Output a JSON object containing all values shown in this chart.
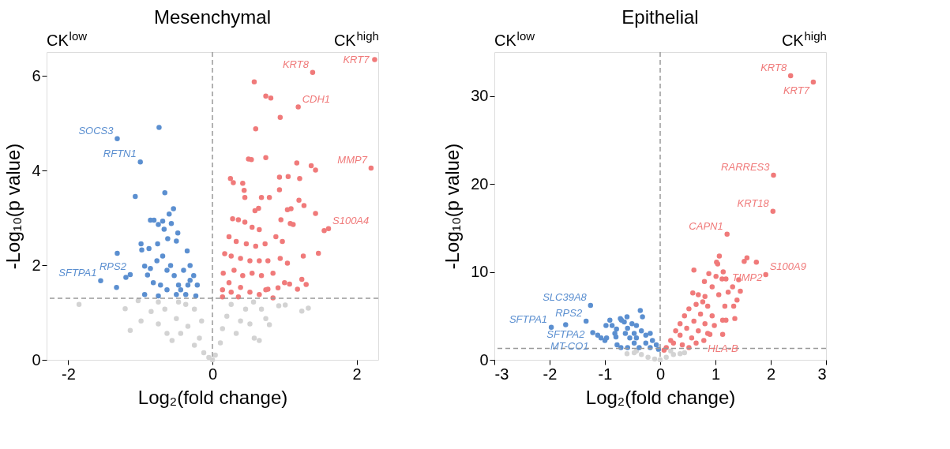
{
  "chart_data": [
    {
      "type": "scatter",
      "title": "Mesenchymal",
      "xlabel": "Log₂(fold change)",
      "ylabel": "-Log₁₀(p value)",
      "xlim": [
        -2.3,
        2.3
      ],
      "xticks": [
        -2,
        0,
        2
      ],
      "ylim": [
        0,
        6.5
      ],
      "yticks": [
        0,
        2,
        4,
        6
      ],
      "grid": false,
      "marker": "circle",
      "ref_lines": [
        {
          "axis": "x",
          "value": 0,
          "color": "#999999",
          "line_style": "dashed"
        },
        {
          "axis": "y",
          "value": 1.3,
          "color": "#999999",
          "line_style": "dashed"
        }
      ],
      "annotations": [
        "CK$^{low}$",
        "CK$^{high}$",
        {
          "text": "SOCS3",
          "x": -1.32,
          "y": 4.67
        },
        {
          "text": "RFTN1",
          "x": -1.0,
          "y": 4.18
        },
        {
          "text": "SFTPA1",
          "x": -1.55,
          "y": 1.67
        },
        {
          "text": "RPS2",
          "x": -1.14,
          "y": 1.8
        },
        {
          "text": "KRT8",
          "x": 1.39,
          "y": 6.07
        },
        {
          "text": "KRT7",
          "x": 2.25,
          "y": 6.34
        },
        {
          "text": "CDH1",
          "x": 1.19,
          "y": 5.34
        },
        {
          "text": "MMP7",
          "x": 2.2,
          "y": 4.05
        },
        {
          "text": "S100A4",
          "x": 1.61,
          "y": 2.77
        }
      ],
      "series": [
        {
          "color": "#d3d3d3",
          "x": [
            -1.85,
            -1.21,
            -1.14,
            -0.99,
            -1.03,
            -0.85,
            -0.75,
            -0.66,
            -0.56,
            -0.5,
            -0.44,
            -0.34,
            -0.25,
            -0.18,
            -0.12,
            -0.05,
            0,
            0.04,
            0.11,
            0.14,
            0.2,
            0.26,
            0.33,
            0.39,
            0.46,
            0.52,
            0.58,
            0.65,
            0.57,
            0.68,
            0.74,
            0.79,
            0.92,
            1.01,
            1.24,
            1.33,
            -0.37,
            -0.47,
            -0.25,
            -0.15,
            -0.63,
            -0.75
          ],
          "values": [
            1.17,
            1.08,
            0.62,
            0.82,
            1.25,
            1.02,
            0.76,
            1.07,
            0.41,
            0.87,
            0.56,
            0.71,
            0.31,
            0.46,
            0.15,
            0.05,
            0,
            0.1,
            0.36,
            0.66,
            0.92,
            1.17,
            0.56,
            0.82,
            1.07,
            0.76,
            0.46,
            0.41,
            1.22,
            1.07,
            0.87,
            0.74,
            1.14,
            1.16,
            1.03,
            1.09,
            1.17,
            1.22,
            1.07,
            0.82,
            0.56,
            1.22
          ]
        },
        {
          "color": "#5b8fd0",
          "x": [
            -1.32,
            -0.74,
            -1.0,
            -1.07,
            -0.66,
            -0.54,
            -0.6,
            -0.86,
            -0.81,
            -0.69,
            -0.75,
            -0.57,
            -0.67,
            -0.48,
            -1.32,
            -0.99,
            -0.98,
            -0.88,
            -0.76,
            -0.62,
            -0.35,
            -0.5,
            -1.55,
            -1.33,
            -1.2,
            -1.14,
            -0.94,
            -0.94,
            -0.86,
            -0.9,
            -0.82,
            -0.77,
            -0.69,
            -0.63,
            -0.58,
            -0.53,
            -0.47,
            -0.4,
            -0.31,
            -0.26,
            -0.21,
            -0.23,
            -0.37,
            -0.5,
            -0.63,
            -0.75,
            -0.72,
            -0.44,
            -0.34,
            -0.31
          ],
          "values": [
            4.67,
            4.91,
            4.18,
            3.45,
            3.53,
            3.19,
            3.08,
            2.95,
            2.95,
            2.93,
            2.86,
            2.88,
            2.76,
            2.68,
            2.25,
            2.45,
            2.32,
            2.35,
            2.45,
            2.56,
            2.3,
            2.51,
            1.67,
            1.53,
            1.74,
            1.8,
            1.98,
            1.38,
            1.93,
            1.79,
            1.63,
            2.09,
            2.19,
            1.89,
            1.99,
            1.78,
            1.58,
            1.89,
            1.99,
            1.78,
            1.58,
            1.35,
            1.38,
            1.38,
            1.48,
            1.35,
            1.58,
            1.48,
            1.58,
            1.68
          ]
        },
        {
          "color": "#f07a7a",
          "x": [
            2.25,
            1.39,
            0.58,
            0.74,
            0.81,
            1.19,
            0.94,
            0.6,
            0.5,
            0.54,
            0.74,
            1.17,
            1.37,
            1.43,
            2.2,
            0.25,
            0.29,
            0.42,
            0.93,
            1.05,
            1.21,
            0.44,
            0.93,
            0.45,
            0.68,
            0.79,
            1.2,
            1.27,
            1.04,
            1.09,
            0.59,
            0.64,
            1.43,
            1.55,
            1.61,
            1.47,
            1.26,
            1.24,
            1.3,
            1.18,
            1.07,
            1.0,
            0.91,
            0.77,
            0.84,
            1.04,
            1.08,
            1.12,
            0.95,
            0.88,
            0.97,
            0.94,
            0.84,
            0.28,
            0.36,
            0.45,
            0.55,
            0.65,
            0.23,
            0.33,
            0.47,
            0.6,
            0.73,
            0.17,
            0.26,
            0.39,
            0.52,
            0.65,
            0.77,
            0.15,
            0.3,
            0.42,
            0.55,
            0.68,
            0.14,
            0.26,
            0.39,
            0.52,
            0.65,
            0.74,
            0.14,
            0.23,
            0.36
          ],
          "values": [
            6.34,
            6.07,
            5.87,
            5.57,
            5.53,
            5.34,
            5.12,
            4.88,
            4.24,
            4.23,
            4.27,
            4.16,
            4.1,
            4.01,
            4.05,
            3.83,
            3.74,
            3.73,
            3.86,
            3.87,
            3.83,
            3.58,
            3.59,
            3.43,
            3.43,
            3.43,
            3.37,
            3.26,
            3.17,
            3.19,
            3.15,
            3.2,
            3.09,
            2.73,
            2.77,
            2.25,
            2.19,
            1.7,
            1.59,
            1.49,
            1.6,
            1.63,
            1.52,
            1.49,
            1.31,
            2.04,
            2.88,
            2.86,
            2.96,
            2.6,
            2.5,
            2.14,
            1.83,
            2.98,
            2.96,
            2.91,
            2.8,
            2.75,
            2.6,
            2.5,
            2.45,
            2.4,
            2.45,
            2.24,
            2.19,
            2.14,
            2.09,
            2.09,
            2.09,
            1.83,
            1.89,
            1.78,
            1.83,
            1.78,
            1.48,
            1.43,
            1.53,
            1.43,
            1.38,
            1.48,
            1.33,
            1.63,
            1.33
          ]
        }
      ]
    },
    {
      "type": "scatter",
      "title": "Epithelial",
      "xlabel": "Log₂(fold change)",
      "ylabel": "-Log₁₀(p value)",
      "xlim": [
        -3,
        3
      ],
      "xticks": [
        -3,
        -2,
        -1,
        0,
        1,
        2,
        3
      ],
      "ylim": [
        0,
        35
      ],
      "yticks": [
        0,
        10,
        20,
        30
      ],
      "grid": false,
      "marker": "circle",
      "ref_lines": [
        {
          "axis": "x",
          "value": 0,
          "color": "#999999",
          "line_style": "dashed"
        },
        {
          "axis": "y",
          "value": 1.3,
          "color": "#999999",
          "line_style": "dashed"
        }
      ],
      "annotations": [
        "CK$^{low}$",
        "CK$^{high}$",
        {
          "text": "SLC39A8",
          "x": -1.26,
          "y": 6.2
        },
        {
          "text": "RPS2",
          "x": -1.34,
          "y": 4.4
        },
        {
          "text": "SFTPA2",
          "x": -1.71,
          "y": 4.0
        },
        {
          "text": "SFTPA1",
          "x": -1.97,
          "y": 3.7
        },
        {
          "text": "MT-CO1",
          "x": -1.22,
          "y": 3.1
        },
        {
          "text": "KRT8",
          "x": 2.36,
          "y": 32.3
        },
        {
          "text": "KRT7",
          "x": 2.77,
          "y": 31.6
        },
        {
          "text": "RARRES3",
          "x": 2.05,
          "y": 21.0
        },
        {
          "text": "KRT18",
          "x": 2.04,
          "y": 16.9
        },
        {
          "text": "CAPN1",
          "x": 1.21,
          "y": 14.3
        },
        {
          "text": "S100A9",
          "x": 1.91,
          "y": 9.7
        },
        {
          "text": "TIMP2",
          "x": 1.23,
          "y": 7.7
        },
        {
          "text": "HLA-B",
          "x": 0.79,
          "y": 2.2
        }
      ],
      "series": [
        {
          "color": "#d3d3d3",
          "x": [
            -0.6,
            -0.47,
            -0.34,
            -0.22,
            -0.1,
            0,
            0.11,
            0.24,
            0.36,
            0.44,
            -0.43,
            0.19
          ],
          "values": [
            0.7,
            0.8,
            0.6,
            0.3,
            0.1,
            0,
            0.3,
            0.6,
            0.7,
            0.8,
            1.0,
            1.0
          ]
        },
        {
          "color": "#5b8fd0",
          "x": [
            -1.26,
            -1.34,
            -1.71,
            -1.97,
            -1.22,
            -1.13,
            -1.07,
            -1.0,
            -0.97,
            -0.91,
            -0.98,
            -0.87,
            -0.79,
            -0.82,
            -0.8,
            -0.72,
            -0.6,
            -0.7,
            -0.36,
            -0.32,
            -0.78,
            -0.71,
            -0.65,
            -0.59,
            -0.51,
            -0.43,
            -0.34,
            -0.26,
            -0.18,
            -0.14,
            -0.07,
            -0.03,
            -0.63,
            -0.55,
            -0.47,
            -0.38,
            -0.59,
            -0.47,
            -0.26,
            -0.18,
            -0.43
          ],
          "values": [
            6.2,
            4.4,
            4.0,
            3.7,
            3.1,
            2.8,
            2.5,
            2.2,
            2.5,
            4.5,
            3.9,
            3.9,
            3.5,
            3.0,
            2.6,
            4.7,
            4.9,
            4.5,
            5.6,
            4.9,
            1.7,
            1.4,
            4.3,
            3.6,
            4.1,
            3.9,
            3.3,
            2.8,
            3.0,
            2.2,
            1.7,
            1.2,
            3.0,
            2.5,
            1.9,
            1.4,
            1.4,
            3.0,
            1.9,
            1.4,
            2.5
          ]
        },
        {
          "color": "#f07a7a",
          "x": [
            2.36,
            2.77,
            2.05,
            2.04,
            1.21,
            1.07,
            1.57,
            1.52,
            1.74,
            1.02,
            1.04,
            1.14,
            0.61,
            1.91,
            0.88,
            1.01,
            1.12,
            1.19,
            1.42,
            0.8,
            1.31,
            1.45,
            1.23,
            1.39,
            1.17,
            1.33,
            1.35,
            1.13,
            1.19,
            1.13,
            0.79,
            0.9,
            0.59,
            0.69,
            0.81,
            0.94,
            1.06,
            0.11,
            0.19,
            0.28,
            0.36,
            0.44,
            0.52,
            0.65,
            0.77,
            0.86,
            0.73,
            0.61,
            0.48,
            0.36,
            0.24,
            0.07,
            0.57,
            0.69,
            0.81,
            0.94,
            0.98,
            0.4,
            0.65,
            0.52,
            0.86
          ],
          "values": [
            32.3,
            31.6,
            21.0,
            16.9,
            14.3,
            11.8,
            11.6,
            11.2,
            11.1,
            11.1,
            10.9,
            10.0,
            10.2,
            9.7,
            9.8,
            9.5,
            9.2,
            9.2,
            9.1,
            8.9,
            8.3,
            7.8,
            7.7,
            6.8,
            6.1,
            6.1,
            4.7,
            4.5,
            4.5,
            2.9,
            2.2,
            2.9,
            7.6,
            7.4,
            7.2,
            8.3,
            7.4,
            1.4,
            2.2,
            3.3,
            4.1,
            5.0,
            5.8,
            6.3,
            6.6,
            6.1,
            5.2,
            4.4,
            3.6,
            2.8,
            1.9,
            1.1,
            2.5,
            3.3,
            4.1,
            5.0,
            3.9,
            1.7,
            1.9,
            1.4,
            3.0
          ]
        }
      ]
    }
  ]
}
